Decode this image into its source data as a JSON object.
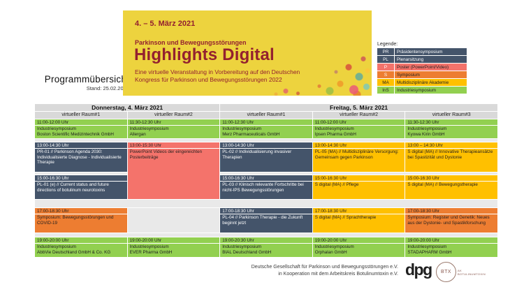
{
  "page": {
    "title": "Programmübersicht",
    "stand": "Stand: 25.02.2021"
  },
  "banner": {
    "date": "4. – 5. März 2021",
    "kicker": "Parkinson und Bewegungsstörungen",
    "title": "Highlights Digital",
    "subtitle_line1": "Eine virtuelle Veranstaltung in Vorbereitung auf den Deutschen",
    "subtitle_line2": "Kongress für Parkinson und Bewegungsstörungen 2022",
    "background_color": "#EDD33E",
    "text_color": "#93202F"
  },
  "legend": {
    "title": "Legende:",
    "items": [
      {
        "code": "PR",
        "label": "Präsidentensymposium",
        "color": "#44546A"
      },
      {
        "code": "PL",
        "label": "Plenarsitzung",
        "color": "#44546A"
      },
      {
        "code": "P",
        "label": "Poster (PowerPoint/Video)",
        "color": "#F4736B"
      },
      {
        "code": "S",
        "label": "Symposium",
        "color": "#ED7D31"
      },
      {
        "code": "MA",
        "label": "Multidisziplinäre Akademie",
        "color": "#FFC000"
      },
      {
        "code": "InS",
        "label": "Industriesymposium",
        "color": "#92D050"
      }
    ]
  },
  "schedule": {
    "days": [
      "Donnerstag, 4. März 2021",
      "Freitag, 5. März 2021"
    ],
    "rooms": [
      "virtueller Raum#1",
      "virtueller Raum#2",
      "virtueller Raum#1",
      "virtueller Raum#2",
      "virtueller Raum#3"
    ],
    "block1": [
      {
        "time": "11:00-12:00 Uhr",
        "type": "Industriesymposium",
        "org": "Boston Scientific Medizintechnik GmbH"
      },
      {
        "time": "11:30-12:30 Uhr",
        "type": "Industriesymposium",
        "org": "Allergan"
      },
      {
        "time": "11:00-12:30 Uhr",
        "type": "Industriesymposium",
        "org": "Merz Pharmaceuticals GmbH"
      },
      {
        "time": "11:00-12:00 Uhr",
        "type": "Industriesymposium",
        "org": "Ipsen Pharma GmbH"
      },
      {
        "time": "11:30-12:30 Uhr",
        "type": "Industriesymposium",
        "org": "Kyowa Kirin GmbH"
      }
    ],
    "block2": {
      "c1": {
        "time": "13:00-14:30 Uhr",
        "title": "PR-01 // Parkinson Agenda 2030: Individualisierte Diagnose - Individualisierte Therapie"
      },
      "poster": {
        "time": "13:00-15:30 Uhr",
        "title": "PowerPoint Videos der eingereichten Posterbeiträge"
      },
      "c3": {
        "time": "13:00-14:30 Uhr",
        "title": "PL-02 // Individualisierung invasiver Therapien"
      },
      "c4": {
        "time": "13:00-14:30 Uhr",
        "title": "PL-05 (MA) // Multidisziplinäre Versorgung: Gemeinsam gegen Parkinson"
      },
      "c5": {
        "time": "13:00 – 14:30 Uhr",
        "title": "S digital (MA) // Innovative Therapieansätze bei Spastizität und Dystonie"
      }
    },
    "block3": {
      "c1": {
        "time": "15:00-16:30 Uhr",
        "title": "PL-01 (e) // Current status and future directions of botulinum neurotoxins"
      },
      "c3": {
        "time": "15:00-16:30 Uhr",
        "title": "PL-03 // Klinisch relevante Fortschritte bei nicht-IPS Bewegungsstörungen"
      },
      "c4": {
        "time": "15:00-16:30 Uhr",
        "title": "S digital (MA) // Pflege"
      },
      "c5": {
        "time": "15:00-16:30 Uhr",
        "title": "S digital (MA) // Bewegungstherapie"
      }
    },
    "block4": {
      "c1": {
        "time": "17:00-18:30 Uhr",
        "title": "Symposium: Bewegungsstörungen und COVID-19"
      },
      "c3": {
        "time": "17:00-18:30 Uhr",
        "title": "PL-04 // Parkinson Therapie - die Zukunft beginnt jetzt"
      },
      "c4": {
        "time": "17:00-18:30 Uhr",
        "title": "S digital (MA) // Sprachtherapie"
      },
      "c5": {
        "time": "17:00-18:30 Uhr",
        "title": "Symposium: Register und Genetik: Neues aus der Dystonie- und Spastikforschung"
      }
    },
    "block5": [
      {
        "time": "19:00-20:00 Uhr",
        "type": "Industriesymposium",
        "org": "AbbVie Deutschland GmbH & Co. KG"
      },
      {
        "time": "19:00-20:00 Uhr",
        "type": "Industriesymposium",
        "org": "EVER Pharma GmbH"
      },
      {
        "time": "19:00-20:30 Uhr",
        "type": "Industriesymposium",
        "org": "BIAL Deutschland GmbH"
      },
      {
        "time": "19:00-20:00 Uhr",
        "type": "Industriesymposium",
        "org": "Orphalan GmbH"
      },
      {
        "time": "19:00-20:00 Uhr",
        "type": "Industriesymposium",
        "org": "STADAPHARM GmbH"
      }
    ]
  },
  "footer": {
    "line1": "Deutsche Gesellschaft für Parkinson und Bewegungsstörungen e.V.",
    "line2": "in Kooperation mit dem Arbeitskreis Botulinumtoxin e.V.",
    "dpg_logo": "dpg",
    "btx_logo": "BTX",
    "btx_caption_line1": "AK",
    "btx_caption_line2": "BOTULINUMTOXIN"
  },
  "colors": {
    "industriesymposium_green": "#92D050",
    "praesidium_plenar_dark": "#44546A",
    "poster_salmon": "#F4736B",
    "symposium_orange": "#ED7D31",
    "akademie_amber": "#FFC000",
    "header_gray": "#D9D9D9",
    "gap_gray": "#E9E9E9"
  }
}
